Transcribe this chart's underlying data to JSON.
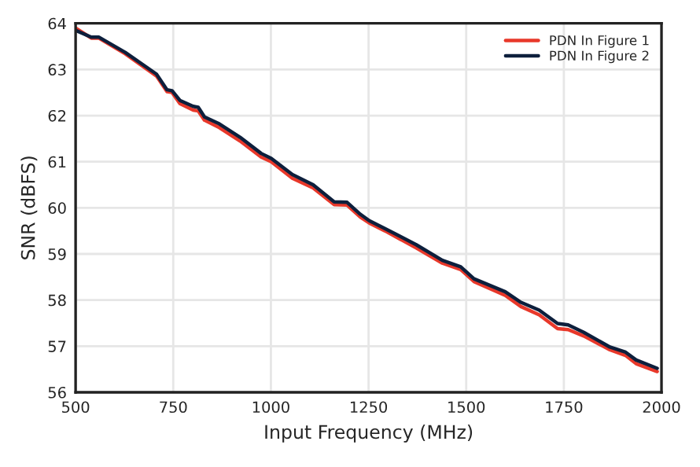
{
  "chart_data": {
    "type": "line",
    "xlabel": "Input Frequency (MHz)",
    "ylabel": "SNR (dBFS)",
    "xlim": [
      500,
      2000
    ],
    "xticks": [
      500,
      750,
      1000,
      1250,
      1500,
      1750,
      2000
    ],
    "ylim": [
      56,
      64
    ],
    "yticks": [
      56,
      57,
      58,
      59,
      60,
      61,
      62,
      63,
      64
    ],
    "grid": true,
    "legend": "top right",
    "marker": "none",
    "line_style": "solid",
    "x": [
      500,
      540,
      560,
      627,
      707,
      734,
      747,
      767,
      801,
      814,
      830,
      868,
      921,
      975,
      1001,
      1055,
      1108,
      1162,
      1195,
      1229,
      1252,
      1292,
      1372,
      1439,
      1486,
      1520,
      1600,
      1640,
      1687,
      1734,
      1761,
      1801,
      1868,
      1908,
      1935,
      1989
    ],
    "series": [
      {
        "name": "PDN In Figure 1",
        "color": "#e8382a",
        "values": [
          63.9,
          63.68,
          63.68,
          63.34,
          62.86,
          62.52,
          62.5,
          62.26,
          62.12,
          62.1,
          61.9,
          61.74,
          61.45,
          61.1,
          61.0,
          60.64,
          60.43,
          60.07,
          60.06,
          59.8,
          59.67,
          59.5,
          59.13,
          58.8,
          58.66,
          58.4,
          58.1,
          57.86,
          57.68,
          57.38,
          57.36,
          57.22,
          56.92,
          56.8,
          56.62,
          56.45
        ]
      },
      {
        "name": "PDN In Figure 2",
        "color": "#0d1f3c",
        "values": [
          63.85,
          63.7,
          63.7,
          63.37,
          62.9,
          62.56,
          62.54,
          62.33,
          62.2,
          62.18,
          61.97,
          61.82,
          61.53,
          61.18,
          61.07,
          60.72,
          60.5,
          60.13,
          60.12,
          59.86,
          59.72,
          59.55,
          59.2,
          58.86,
          58.72,
          58.46,
          58.18,
          57.95,
          57.78,
          57.49,
          57.46,
          57.3,
          56.98,
          56.87,
          56.7,
          56.52
        ]
      }
    ]
  }
}
